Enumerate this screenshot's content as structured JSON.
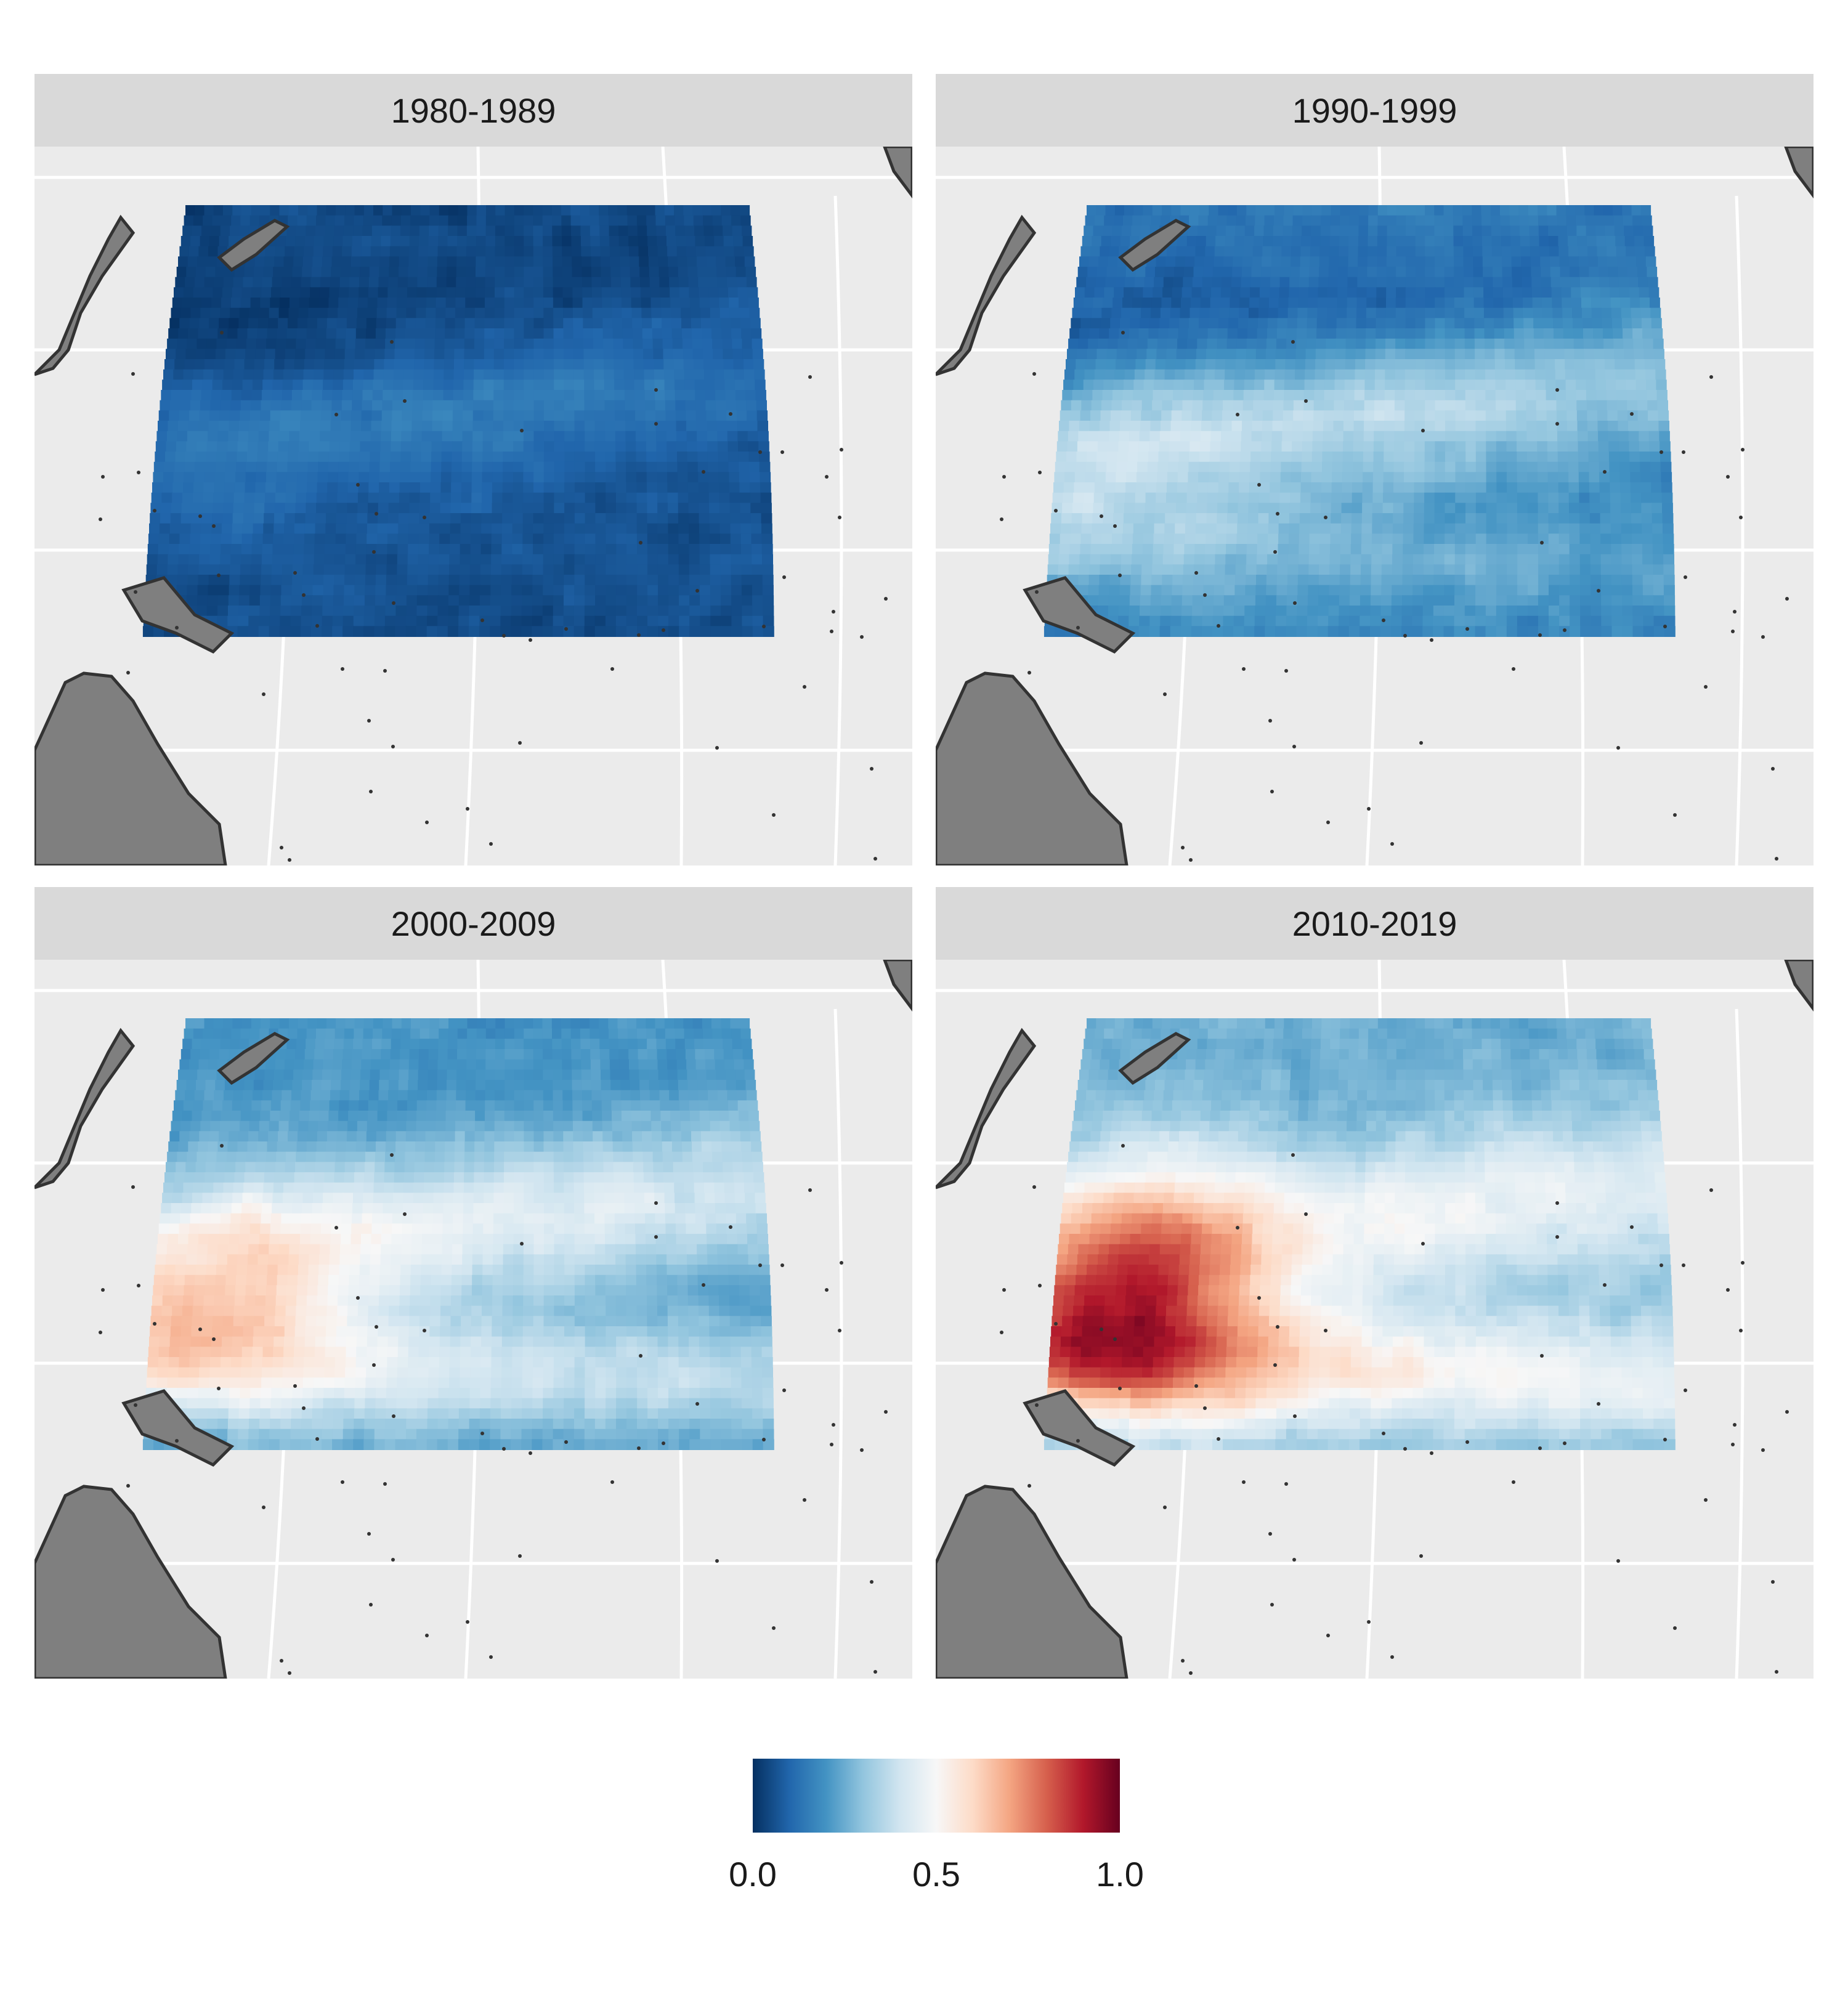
{
  "panels": [
    {
      "label": "1980-1989",
      "field": {
        "base": 0.05,
        "north_mid": -0.03,
        "equatorial": 0.1,
        "south_band": 0.02,
        "west_warm": 0.0,
        "noise": 0.08
      }
    },
    {
      "label": "1990-1999",
      "field": {
        "base": 0.15,
        "north_mid": -0.08,
        "equatorial": 0.22,
        "south_band": 0.12,
        "west_warm": 0.06,
        "noise": 0.1
      }
    },
    {
      "label": "2000-2009",
      "field": {
        "base": 0.2,
        "north_mid": -0.02,
        "equatorial": 0.22,
        "south_band": 0.25,
        "west_warm": 0.22,
        "noise": 0.1
      }
    },
    {
      "label": "2010-2019",
      "field": {
        "base": 0.25,
        "north_mid": 0.0,
        "equatorial": 0.2,
        "south_band": 0.35,
        "west_warm": 0.42,
        "noise": 0.1
      }
    }
  ],
  "legend": {
    "ticks": [
      {
        "value": 0.0,
        "label": "0.0"
      },
      {
        "value": 0.5,
        "label": "0.5"
      },
      {
        "value": 1.0,
        "label": "1.0"
      }
    ],
    "colors": [
      "#053061",
      "#2166ac",
      "#4393c3",
      "#92c5de",
      "#d1e5f0",
      "#f7f7f7",
      "#fddbc7",
      "#f4a582",
      "#d6604d",
      "#b2182b",
      "#67001f"
    ]
  },
  "style": {
    "land": "#7f7f7f",
    "coast": "#333333",
    "grid": "#ffffff",
    "panel_bg": "#ebebeb"
  }
}
